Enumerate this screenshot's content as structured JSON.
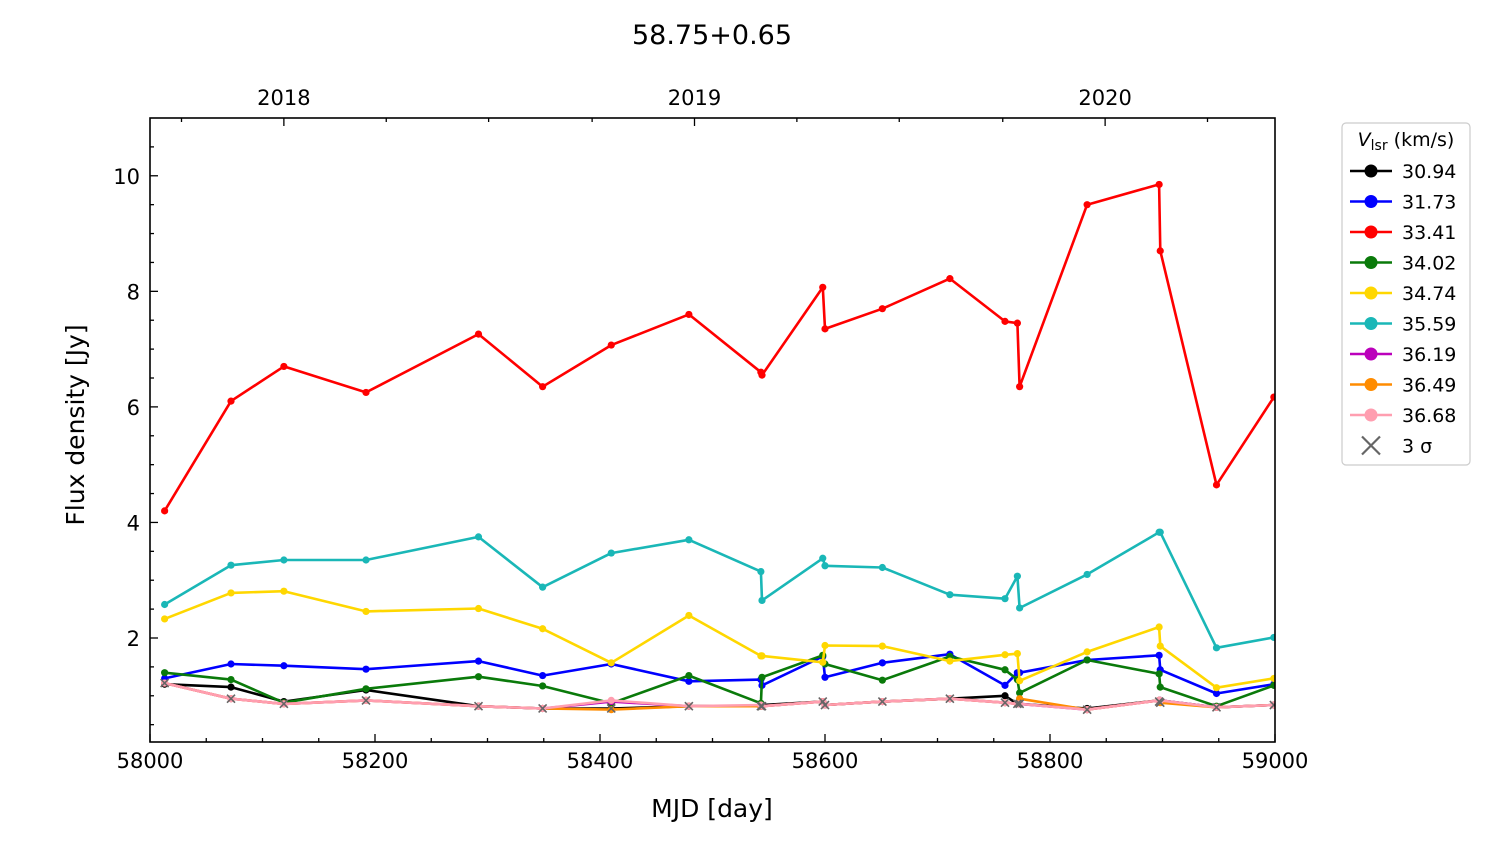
{
  "chart_data": {
    "type": "line",
    "title": "58.75+0.65",
    "xlabel": "MJD [day]",
    "ylabel": "Flux density [Jy]",
    "xlim": [
      58000,
      59000
    ],
    "ylim": [
      0.2,
      11.0
    ],
    "x_ticks": [
      58000,
      58200,
      58400,
      58600,
      58800,
      59000
    ],
    "y_ticks": [
      2,
      4,
      6,
      8,
      10
    ],
    "top_axis": {
      "labels": [
        {
          "label": "2018",
          "mjd": 58119
        },
        {
          "label": "2019",
          "mjd": 58484
        },
        {
          "label": "2020",
          "mjd": 58849
        }
      ]
    },
    "grid": false,
    "legend_title_base": "V",
    "legend_title_sub": "lsr",
    "legend_title_unit": " (km/s)",
    "legend_placement": "outside-right",
    "sigma_label": "3 σ",
    "x": [
      58013,
      58072,
      58119,
      58192,
      58292,
      58349,
      58410,
      58479,
      58543,
      58544,
      58598,
      58600,
      58651,
      58711,
      58760,
      58771,
      58773,
      58833,
      58897,
      58898,
      58948,
      58999
    ],
    "series": [
      {
        "name": "30.94",
        "color": "#000000",
        "values": [
          1.2,
          1.15,
          0.9,
          1.1,
          0.82,
          0.78,
          0.78,
          0.82,
          0.82,
          0.84,
          0.9,
          0.84,
          0.9,
          0.95,
          1.0,
          0.86,
          0.86,
          0.78,
          0.92,
          0.92,
          0.8,
          0.84
        ]
      },
      {
        "name": "31.73",
        "color": "#0000ff",
        "values": [
          1.3,
          1.55,
          1.52,
          1.46,
          1.6,
          1.35,
          1.55,
          1.25,
          1.28,
          1.18,
          1.68,
          1.32,
          1.57,
          1.72,
          1.18,
          1.4,
          1.4,
          1.62,
          1.7,
          1.45,
          1.04,
          1.2
        ]
      },
      {
        "name": "33.41",
        "color": "#ff0000",
        "values": [
          4.2,
          6.1,
          6.7,
          6.25,
          7.26,
          6.35,
          7.07,
          7.6,
          6.6,
          6.55,
          8.07,
          7.35,
          7.7,
          8.22,
          7.48,
          7.45,
          6.35,
          9.5,
          9.85,
          8.7,
          4.65,
          6.17
        ]
      },
      {
        "name": "34.02",
        "color": "#0a7a0a",
        "values": [
          1.4,
          1.28,
          0.88,
          1.12,
          1.33,
          1.17,
          0.87,
          1.35,
          0.87,
          1.32,
          1.7,
          1.55,
          1.27,
          1.68,
          1.45,
          1.28,
          1.05,
          1.62,
          1.38,
          1.15,
          0.82,
          1.18
        ]
      },
      {
        "name": "34.74",
        "color": "#ffd700",
        "values": [
          2.33,
          2.78,
          2.81,
          2.46,
          2.51,
          2.16,
          1.57,
          2.39,
          1.69,
          1.69,
          1.58,
          1.87,
          1.86,
          1.6,
          1.71,
          1.73,
          1.26,
          1.76,
          2.19,
          1.86,
          1.14,
          1.3
        ]
      },
      {
        "name": "35.59",
        "color": "#1ab7b7",
        "values": [
          2.58,
          3.26,
          3.35,
          3.35,
          3.75,
          2.88,
          3.47,
          3.7,
          3.15,
          2.65,
          3.38,
          3.25,
          3.22,
          2.75,
          2.68,
          3.07,
          2.52,
          3.1,
          3.83,
          3.83,
          1.83,
          2.01
        ]
      },
      {
        "name": "36.19",
        "color": "#bb00bb",
        "values": [
          1.22,
          0.95,
          0.86,
          0.92,
          0.82,
          0.78,
          0.9,
          0.82,
          0.82,
          0.82,
          0.9,
          0.84,
          0.9,
          0.95,
          0.88,
          0.86,
          0.86,
          0.76,
          0.92,
          0.92,
          0.8,
          0.84
        ]
      },
      {
        "name": "36.49",
        "color": "#ff8c00",
        "values": [
          1.22,
          0.95,
          0.86,
          0.92,
          0.82,
          0.78,
          0.76,
          0.82,
          0.82,
          0.82,
          0.9,
          0.84,
          0.9,
          0.95,
          0.88,
          0.86,
          0.95,
          0.76,
          0.92,
          0.88,
          0.8,
          0.84
        ]
      },
      {
        "name": "36.68",
        "color": "#ff9eb0",
        "values": [
          1.22,
          0.95,
          0.86,
          0.92,
          0.82,
          0.78,
          0.92,
          0.82,
          0.84,
          0.82,
          0.9,
          0.84,
          0.9,
          0.95,
          0.88,
          0.86,
          0.86,
          0.76,
          0.92,
          0.92,
          0.8,
          0.84
        ]
      }
    ],
    "sigma_points": {
      "color": "#666666",
      "x": [
        58013,
        58072,
        58119,
        58192,
        58292,
        58349,
        58410,
        58479,
        58543,
        58544,
        58598,
        58600,
        58651,
        58711,
        58760,
        58771,
        58773,
        58833,
        58897,
        58898,
        58948,
        58999
      ],
      "y": [
        1.22,
        0.95,
        0.86,
        0.92,
        0.82,
        0.78,
        0.78,
        0.82,
        0.82,
        0.82,
        0.9,
        0.84,
        0.9,
        0.95,
        0.88,
        0.86,
        0.86,
        0.76,
        0.9,
        0.88,
        0.8,
        0.84
      ]
    }
  }
}
